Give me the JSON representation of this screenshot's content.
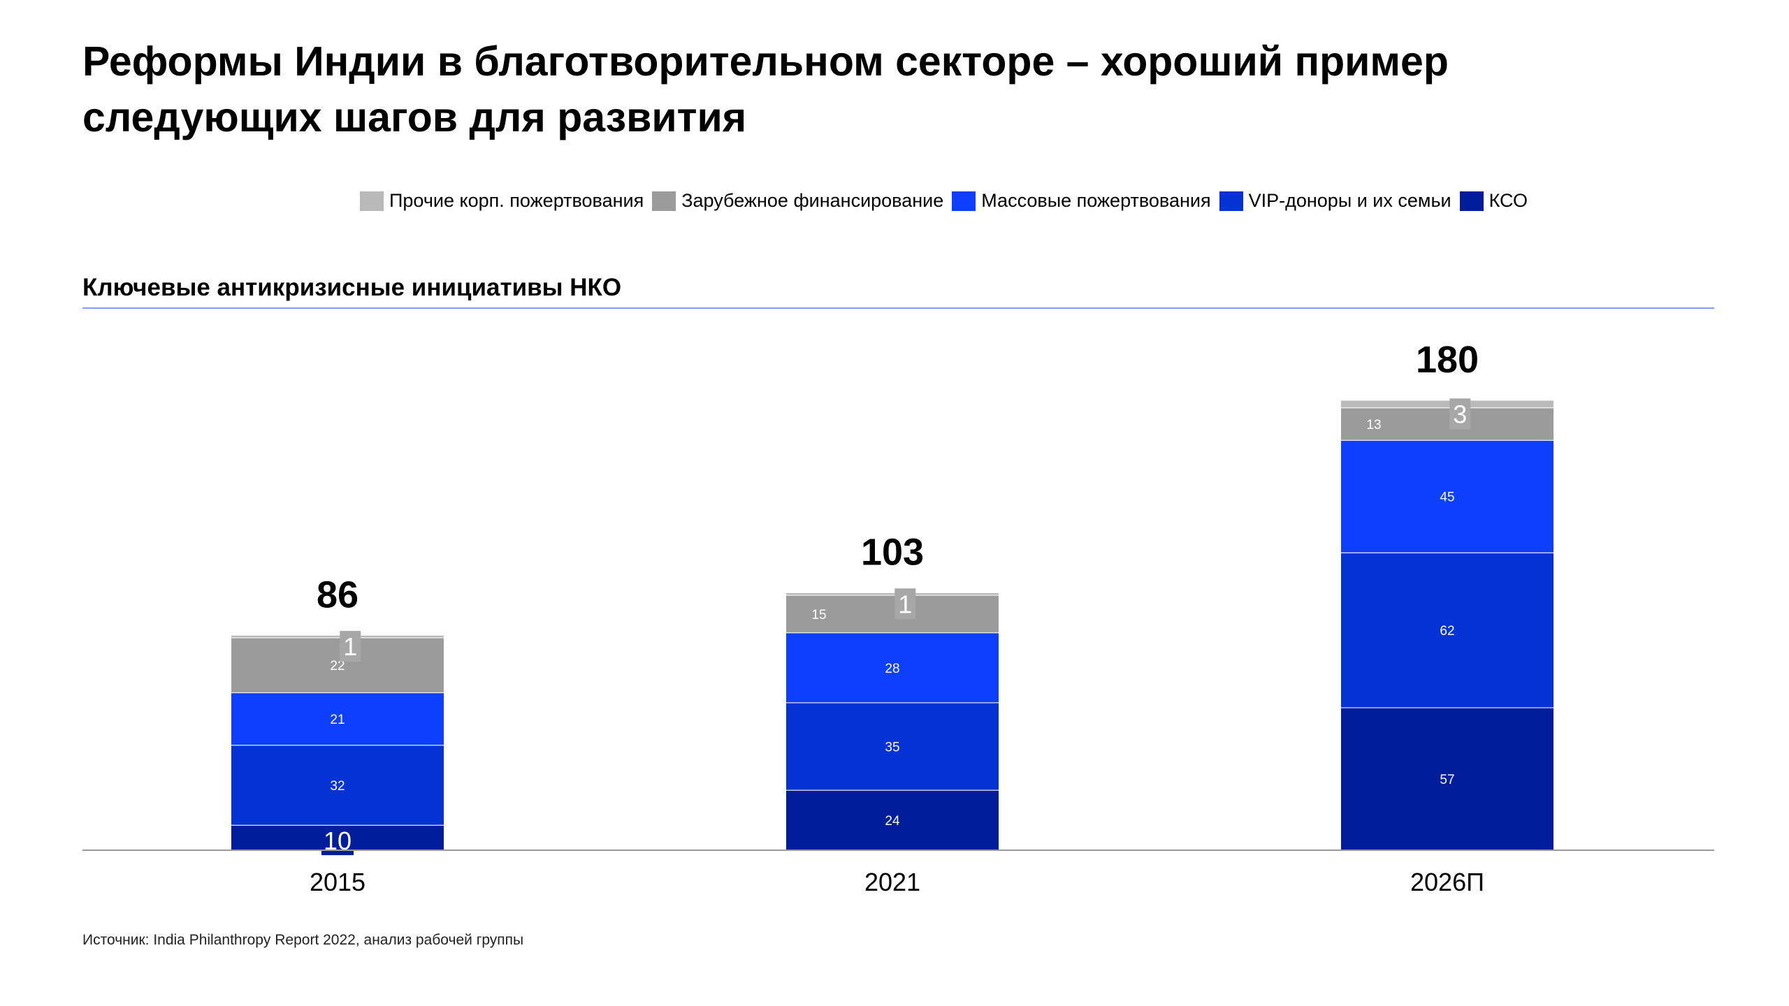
{
  "title": "Реформы Индии в благотворительном секторе – хороший пример следующих шагов для развития",
  "subtitle": "Ключевые антикризисные инициативы НКО",
  "source": "Источник: India Philanthropy Report 2022, анализ рабочей группы",
  "chart_data": {
    "type": "bar",
    "stacked": true,
    "categories": [
      "2015",
      "2021",
      "2026П"
    ],
    "totals": [
      "86",
      "103",
      "180"
    ],
    "ylim": [
      0,
      180
    ],
    "grid": false,
    "legend_position": "top",
    "series": [
      {
        "name": "КСО",
        "color": "#001e9c",
        "values": [
          10,
          24,
          57
        ]
      },
      {
        "name": "VIP-доноры и их семьи",
        "color": "#0532d4",
        "values": [
          32,
          35,
          62
        ]
      },
      {
        "name": "Массовые пожертвования",
        "color": "#0d3fff",
        "values": [
          21,
          28,
          45
        ]
      },
      {
        "name": "Зарубежное финансирование",
        "color": "#9b9b9b",
        "values": [
          22,
          15,
          13
        ]
      },
      {
        "name": "Прочие корп. пожертвования",
        "color": "#b9b9b9",
        "values": [
          1,
          1,
          3
        ]
      }
    ],
    "legend_order": [
      "Прочие корп. пожертвования",
      "Зарубежное финансирование",
      "Массовые пожертвования",
      "VIP-доноры и их семьи",
      "КСО"
    ]
  }
}
